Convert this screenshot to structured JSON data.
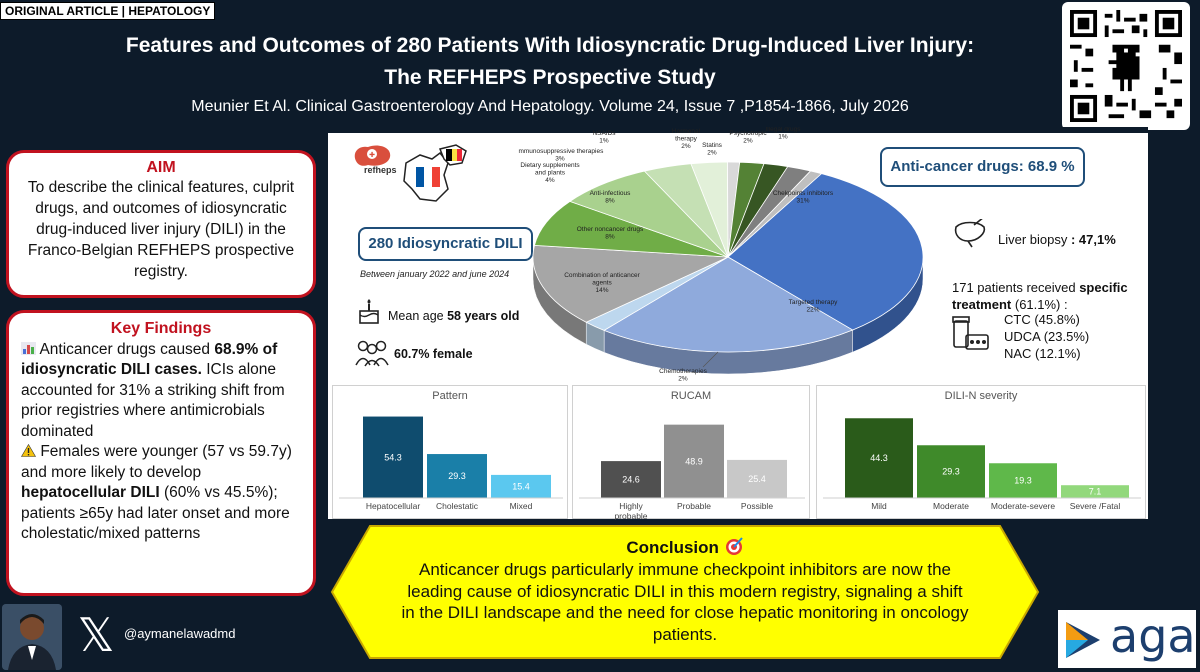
{
  "header": {
    "tag": "ORIGINAL ARTICLE | HEPATOLOGY",
    "title_line1": "Features and Outcomes of 280 Patients With Idiosyncratic Drug-Induced Liver Injury:",
    "title_line2": "The REFHEPS Prospective Study",
    "citation": "Meunier Et Al. Clinical Gastroenterology And Hepatology. Volume 24, Issue 7 ,P1854-1866, July 2026"
  },
  "aim": {
    "heading": "AIM",
    "text": "To describe the clinical features, culprit drugs, and outcomes of idiosyncratic drug-induced liver injury (DILI) in the Franco-Belgian REFHEPS prospective registry."
  },
  "key_findings": {
    "heading": "Key Findings",
    "p1_a": "Anticancer drugs caused ",
    "p1_b": "68.9% of idiosyncratic DILI cases.",
    "p1_c": " ICIs alone accounted for 31%  a striking shift from prior registries where antimicrobials dominated",
    "p2_a": "Females were younger (57 vs 59.7y) and more likely to develop ",
    "p2_b": "hepatocellular DILI",
    "p2_c": " (60% vs 45.5%); patients ≥65y had later onset and more cholestatic/mixed patterns"
  },
  "panel": {
    "logo_text": "refheps",
    "dili_count": "280 Idiosyncratic DILI",
    "period": "Between january 2022 and june 2024",
    "age_label": "Mean age ",
    "age_value": "58 years old",
    "female_value": "60.7% female",
    "anticancer": "Anti-cancer drugs:  68.9 %",
    "biopsy_label": "Liver biopsy ",
    "biopsy_value": ": 47,1%",
    "treatment_a": "171 patients received ",
    "treatment_b": "specific",
    "treatment_c": "treatment",
    "treatment_d": " (61.1%) :",
    "ctc": "CTC (45.8%)",
    "udca": "UDCA (23.5%)",
    "nac": "NAC (12.1%)"
  },
  "chart_data": [
    {
      "type": "pie",
      "title": "",
      "slices": [
        {
          "label": "Chekpoints inhibitors",
          "value": 31,
          "color": "#4472c4"
        },
        {
          "label": "Targeted therapy",
          "value": 22,
          "color": "#8faadc"
        },
        {
          "label": "Chemotherapies",
          "value": 2,
          "color": "#bdd7ee"
        },
        {
          "label": "Combination of anticancer agents",
          "value": 14,
          "color": "#a6a6a6"
        },
        {
          "label": "Other noncancer drugs",
          "value": 8,
          "color": "#70ad47"
        },
        {
          "label": "Anti-infectious",
          "value": 8,
          "color": "#a9d18e"
        },
        {
          "label": "Dietary supplements and plants",
          "value": 4,
          "color": "#c5e0b4"
        },
        {
          "label": "Immunosuppressive therapies",
          "value": 3,
          "color": "#e2f0d9"
        },
        {
          "label": "NSAIDs",
          "value": 1,
          "color": "#d9d9d9"
        },
        {
          "label": "Hormonal therapy",
          "value": 2,
          "color": "#548235"
        },
        {
          "label": "Statins",
          "value": 2,
          "color": "#375623"
        },
        {
          "label": "Psychotropic",
          "value": 2,
          "color": "#7f7f7f"
        },
        {
          "label": "Illegal drugs",
          "value": 1,
          "color": "#bfbfbf"
        }
      ],
      "labels_text": {
        "checkpoints": [
          "Chekpoints inhibitors",
          "31%"
        ],
        "targeted": [
          "Targeted therapy",
          "22%"
        ],
        "chemo": [
          "Chemotherapies",
          "2%"
        ],
        "combination": [
          "Combination of anticancer",
          "agents",
          "14%"
        ],
        "other": [
          "Other noncancer drugs",
          "8%"
        ],
        "antiinf": [
          "Anti-infectious",
          "8%"
        ],
        "dietary": [
          "Dietary supplements",
          "and plants",
          "4%"
        ],
        "immuno": [
          "Immunosuppressive therapies",
          "3%"
        ],
        "nsaids": [
          "NSAIDs",
          "1%"
        ],
        "hormonal": [
          "Hormonal",
          "therapy",
          "2%"
        ],
        "statins": [
          "Statins",
          "2%"
        ],
        "psycho": [
          "Psychotropic",
          "2%"
        ],
        "illegal": [
          "Illegal drugs",
          "1%"
        ]
      }
    },
    {
      "type": "bar",
      "title": "Pattern",
      "categories": [
        "Hepatocellular",
        "Cholestatic",
        "Mixed"
      ],
      "values": [
        54.3,
        29.3,
        15.4
      ],
      "colors": [
        "#0f4c6e",
        "#1a7fa8",
        "#5bc8ef"
      ],
      "ylim": [
        0,
        60
      ]
    },
    {
      "type": "bar",
      "title": "RUCAM",
      "categories": [
        "Highly probable",
        "Probable",
        "Possible"
      ],
      "values": [
        24.6,
        48.9,
        25.4
      ],
      "colors": [
        "#505050",
        "#909090",
        "#c8c8c8"
      ],
      "ylim": [
        0,
        60
      ]
    },
    {
      "type": "bar",
      "title": "DILI-N severity",
      "categories": [
        "Mild",
        "Moderate",
        "Moderate-severe",
        "Severe /Fatal"
      ],
      "values": [
        44.3,
        29.3,
        19.3,
        7.1
      ],
      "colors": [
        "#2a5b1a",
        "#3f8a2a",
        "#5fb84a",
        "#92d87c"
      ],
      "ylim": [
        0,
        50
      ]
    }
  ],
  "conclusion": {
    "heading": "Conclusion",
    "text": "Anticancer drugs  particularly immune checkpoint inhibitors are now the leading cause of idiosyncratic DILI in this modern registry, signaling a shift in the DILI landscape and the need for close hepatic monitoring in oncology patients."
  },
  "footer": {
    "handle": "@aymanelawadmd",
    "aga": "aga",
    "x_logo": "𝕏"
  },
  "colors": {
    "background": "#0d1b2a",
    "accent_red": "#c1121f",
    "navy": "#1f4e79",
    "conclusion_yellow": "#ffff00"
  }
}
